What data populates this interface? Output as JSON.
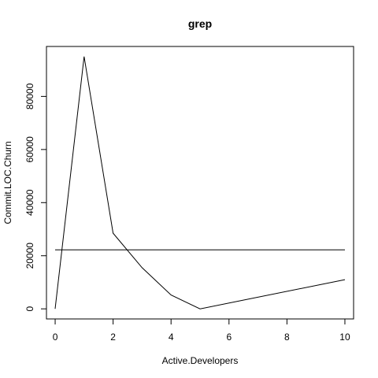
{
  "chart_data": {
    "type": "line",
    "title": "grep",
    "xlabel": "Active.Developers",
    "ylabel": "Commit.LOC.Churn",
    "xlim": [
      -0.3,
      10.3
    ],
    "ylim": [
      -3800,
      98800
    ],
    "x_ticks": [
      0,
      2,
      4,
      6,
      8,
      10
    ],
    "y_ticks": [
      0,
      20000,
      40000,
      60000,
      80000
    ],
    "x_tick_labels": [
      "0",
      "2",
      "4",
      "6",
      "8",
      "10"
    ],
    "y_tick_labels": [
      "0",
      "20000",
      "40000",
      "60000",
      "80000"
    ],
    "grid": false,
    "series": [
      {
        "x": [
          0,
          1,
          2,
          3,
          4,
          5,
          10
        ],
        "y": [
          0,
          95000,
          28500,
          15500,
          5200,
          0,
          11000
        ]
      },
      {
        "x": [
          0,
          10
        ],
        "y": [
          22200,
          22200
        ]
      }
    ]
  }
}
